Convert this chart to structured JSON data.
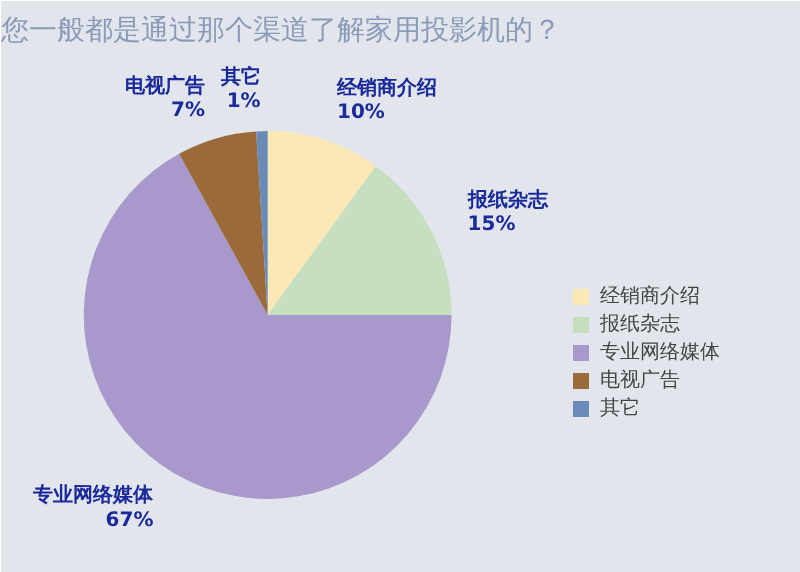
{
  "chart_data": {
    "type": "pie",
    "title": "您一般都是通过那个渠道了解家用投影机的？",
    "categories": [
      "经销商介绍",
      "报纸杂志",
      "专业网络媒体",
      "电视广告",
      "其它"
    ],
    "values": [
      10,
      15,
      67,
      7,
      1
    ],
    "colors": [
      "#fce8b4",
      "#c6dfc0",
      "#a898cc",
      "#9a6a3a",
      "#6a8ab8"
    ],
    "value_labels": [
      "10%",
      "15%",
      "67%",
      "7%",
      "1%"
    ],
    "legend": "right"
  }
}
